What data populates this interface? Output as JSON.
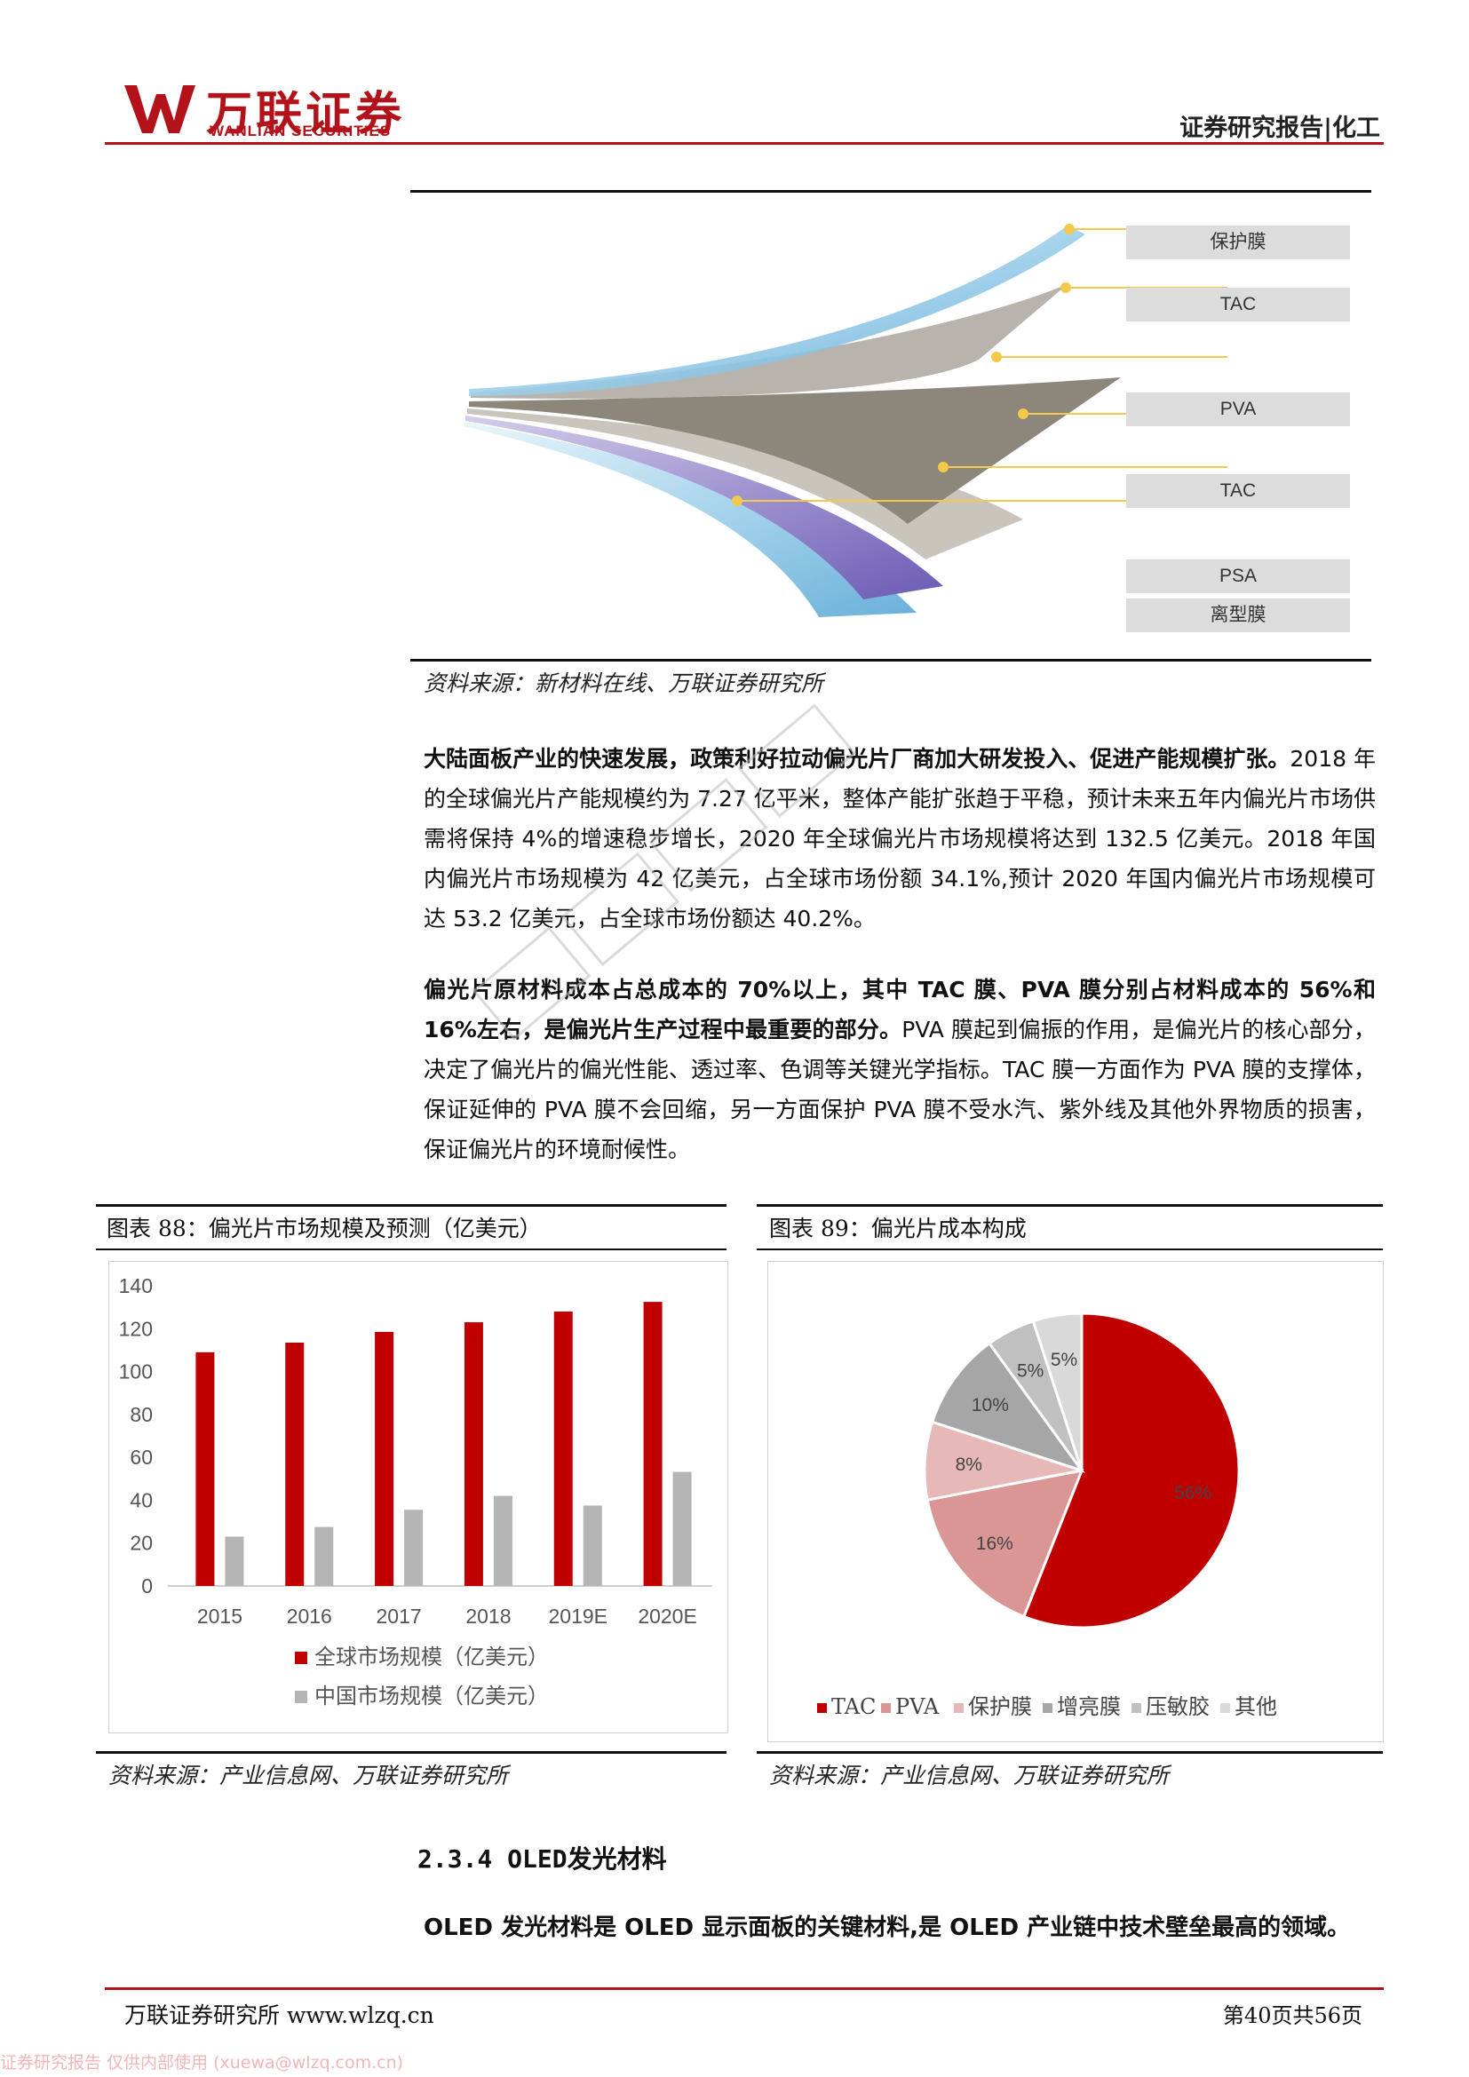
{
  "header": {
    "logo_cn": "万联证券",
    "logo_en": "WANLIAN SECURITIES",
    "category": "证券研究报告|化工"
  },
  "figure_layers": {
    "labels": [
      "保护膜",
      "TAC",
      "PVA",
      "TAC",
      "PSA",
      "离型膜"
    ],
    "source": "资料来源：新材料在线、万联证券研究所"
  },
  "paragraph1": {
    "bold": "大陆面板产业的快速发展，政策利好拉动偏光片厂商加大研发投入、促进产能规模扩张。",
    "text": "2018 年的全球偏光片产能规模约为 7.27 亿平米，整体产能扩张趋于平稳，预计未来五年内偏光片市场供需将保持 4%的增速稳步增长，2020 年全球偏光片市场规模将达到 132.5 亿美元。2018 年国内偏光片市场规模为 42 亿美元，占全球市场份额 34.1%,预计 2020 年国内偏光片市场规模可达 53.2 亿美元，占全球市场份额达 40.2%。"
  },
  "paragraph2": {
    "bold": "偏光片原材料成本占总成本的 70%以上，其中 TAC 膜、PVA 膜分别占材料成本的 56%和 16%左右，是偏光片生产过程中最重要的部分。",
    "text": "PVA 膜起到偏振的作用，是偏光片的核心部分，决定了偏光片的偏光性能、透过率、色调等关键光学指标。TAC 膜一方面作为 PVA 膜的支撑体，保证延伸的 PVA 膜不会回缩，另一方面保护 PVA 膜不受水汽、紫外线及其他外界物质的损害，保证偏光片的环境耐候性。"
  },
  "chart88_panel": {
    "title": "图表 88：偏光片市场规模及预测（亿美元）",
    "source": "资料来源：产业信息网、万联证券研究所"
  },
  "chart89_panel": {
    "title": "图表 89：偏光片成本构成",
    "source": "资料来源：产业信息网、万联证券研究所"
  },
  "chart_data": [
    {
      "type": "bar",
      "title": "",
      "categories": [
        "2015",
        "2016",
        "2017",
        "2018",
        "2019E",
        "2020E"
      ],
      "series": [
        {
          "name": "全球市场规模（亿美元）",
          "values": [
            109,
            113.5,
            118.5,
            123,
            128,
            132.5
          ],
          "color": "#c00000"
        },
        {
          "name": "中国市场规模（亿美元）",
          "values": [
            23,
            27.5,
            35.5,
            42,
            37.5,
            53.2
          ],
          "color": "#b4b4b4"
        }
      ],
      "ylim": [
        0,
        140
      ],
      "yticks": [
        0,
        20,
        40,
        60,
        80,
        100,
        120,
        140
      ],
      "legend": "bottom"
    },
    {
      "type": "pie",
      "title": "",
      "slices": [
        {
          "name": "TAC",
          "value": 56,
          "label": "56%",
          "color": "#c00000"
        },
        {
          "name": "PVA",
          "value": 16,
          "label": "16%",
          "color": "#d99694"
        },
        {
          "name": "保护膜",
          "value": 8,
          "label": "8%",
          "color": "#e6b9b8"
        },
        {
          "name": "增亮膜",
          "value": 10,
          "label": "10%",
          "color": "#a6a6a6"
        },
        {
          "name": "压敏胶",
          "value": 5,
          "label": "5%",
          "color": "#c0c0c0"
        },
        {
          "name": "其他",
          "value": 5,
          "label": "5%",
          "color": "#d9d9d9"
        }
      ],
      "legend": "bottom"
    }
  ],
  "section": {
    "title": "2.3.4 OLED发光材料",
    "lead": "OLED 发光材料是 OLED 显示面板的关键材料,是 OLED 产业链中技术壁垒最高的领域。"
  },
  "footer": {
    "left": "万联证券研究所 www.wlzq.cn",
    "right": "第40页共56页",
    "watermark": "证券研究报告 仅供内部使用 (xuewa@wlzq.com.cn)"
  }
}
